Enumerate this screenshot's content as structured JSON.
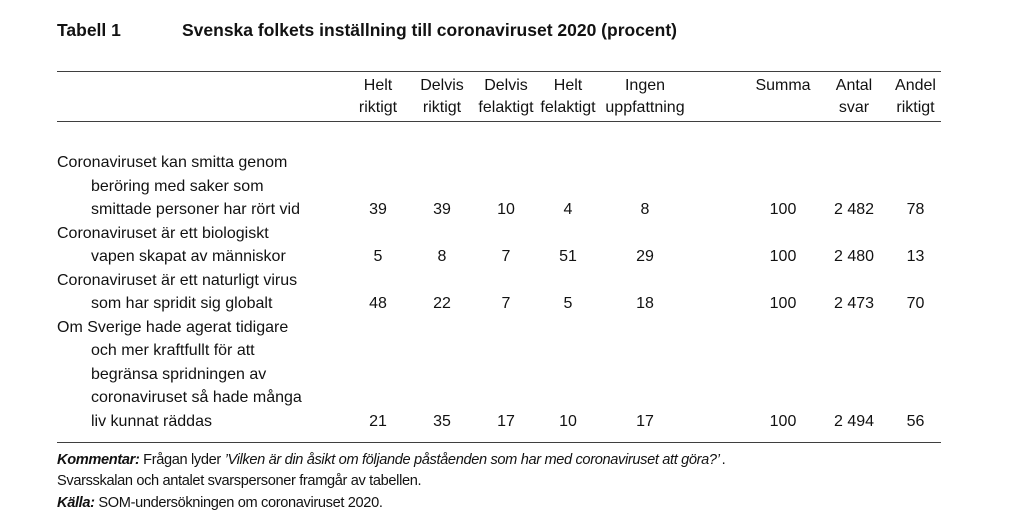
{
  "page": {
    "background": "#ffffff",
    "rule_color": "#3f3f3f",
    "text_color": "#121212"
  },
  "title": {
    "label": "Tabell 1",
    "text": "Svenska folkets inställning till coronaviruset 2020 (procent)"
  },
  "table": {
    "header": [
      {
        "line1": "Helt",
        "line2": "riktigt"
      },
      {
        "line1": "Delvis",
        "line2": "riktigt"
      },
      {
        "line1": "Delvis",
        "line2": "felaktigt"
      },
      {
        "line1": "Helt",
        "line2": "felaktigt"
      },
      {
        "line1": "Ingen",
        "line2": "uppfattning"
      },
      {
        "line1": "",
        "line2": "Summa"
      },
      {
        "line1": "Antal",
        "line2": "svar"
      },
      {
        "line1": "Andel",
        "line2": "riktigt"
      }
    ],
    "rows": [
      {
        "lines": [
          "Coronaviruset kan smitta genom",
          "beröring med saker som",
          "smittade personer har rört vid"
        ],
        "values": [
          "39",
          "39",
          "10",
          "4",
          "8",
          "100",
          "2 482",
          "78"
        ]
      },
      {
        "lines": [
          "Coronaviruset är ett biologiskt",
          "vapen skapat av människor"
        ],
        "values": [
          "5",
          "8",
          "7",
          "51",
          "29",
          "100",
          "2 480",
          "13"
        ]
      },
      {
        "lines": [
          "Coronaviruset är ett naturligt virus",
          "som har spridit sig globalt"
        ],
        "values": [
          "48",
          "22",
          "7",
          "5",
          "18",
          "100",
          "2 473",
          "70"
        ]
      },
      {
        "lines": [
          "Om Sverige hade agerat tidigare",
          "och mer kraftfullt för att",
          "begränsa spridningen av",
          "coronaviruset så hade många",
          "liv kunnat räddas"
        ],
        "values": [
          "21",
          "35",
          "17",
          "10",
          "17",
          "100",
          "2 494",
          "56"
        ]
      }
    ]
  },
  "notes": {
    "kommentar_label": "Kommentar:",
    "kommentar_lead": "Frågan lyder",
    "kommentar_question": "’Vilken är din åsikt om följande påståenden som har med coronaviruset att göra?’",
    "kommentar_end": ".",
    "line2": "Svarsskalan och antalet svarspersoner framgår av tabellen.",
    "kalla_label": "Källa:",
    "kalla_text": "SOM-undersökningen om coronaviruset 2020."
  }
}
